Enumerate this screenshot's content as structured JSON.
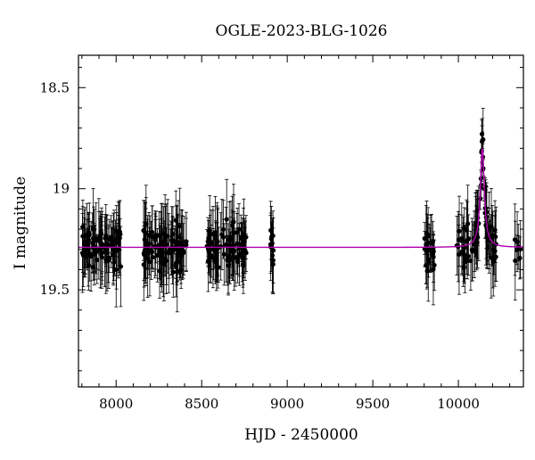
{
  "chart_data": {
    "type": "scatter",
    "title": "OGLE-2023-BLG-1026",
    "xlabel": "HJD - 2450000",
    "ylabel": "I magnitude",
    "xlim": [
      7780,
      10380
    ],
    "ylim": [
      19.98,
      18.34
    ],
    "y_inverted": true,
    "x_ticks": [
      8000,
      8500,
      9000,
      9500,
      10000
    ],
    "x_tick_labels": [
      "8000",
      "8500",
      "9000",
      "9500",
      "10000"
    ],
    "y_ticks": [
      18.5,
      19,
      19.5
    ],
    "y_tick_labels": [
      "18.5",
      "19",
      "19.5"
    ],
    "grid": false,
    "baseline_magnitude": 19.29,
    "point_color": "#000000",
    "model_color": "#b000b0",
    "observing_seasons": [
      {
        "start": 7800,
        "end": 8030,
        "count": 90
      },
      {
        "start": 8160,
        "end": 8410,
        "count": 95
      },
      {
        "start": 8530,
        "end": 8760,
        "count": 90
      },
      {
        "start": 8900,
        "end": 8920,
        "count": 12
      },
      {
        "start": 9800,
        "end": 9860,
        "count": 25
      },
      {
        "start": 9990,
        "end": 10220,
        "count": 75
      },
      {
        "start": 10330,
        "end": 10365,
        "count": 8
      }
    ],
    "peak_points": [
      {
        "x": 10128,
        "y": 19.05
      },
      {
        "x": 10132,
        "y": 18.95
      },
      {
        "x": 10135,
        "y": 18.82
      },
      {
        "x": 10138,
        "y": 18.73
      },
      {
        "x": 10141,
        "y": 18.76
      },
      {
        "x": 10145,
        "y": 18.9
      },
      {
        "x": 10150,
        "y": 19.0
      },
      {
        "x": 10156,
        "y": 19.12
      }
    ],
    "model": {
      "t0": 10140,
      "peak_magnitude": 18.8,
      "width": 14,
      "baseline_magnitude": 19.29
    }
  }
}
